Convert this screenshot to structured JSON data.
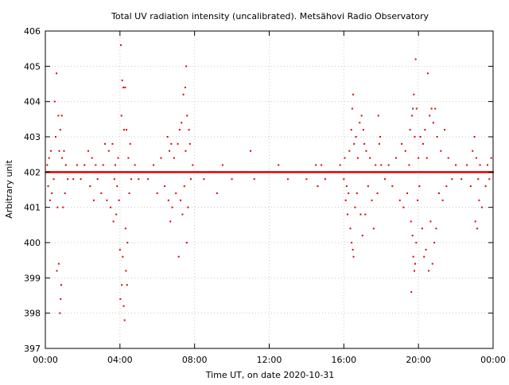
{
  "chart_data": {
    "type": "scatter",
    "title": "Total UV radiation intensity (uncalibrated). Metsähovi Radio Observatory",
    "xlabel": "Time UT, on date 2020-10-31",
    "ylabel": "Arbitrary unit",
    "xlim": [
      0,
      24
    ],
    "ylim": [
      397,
      406
    ],
    "x_ticks": [
      0,
      4,
      8,
      12,
      16,
      20,
      24
    ],
    "x_tick_labels": [
      "00:00",
      "04:00",
      "08:00",
      "12:00",
      "16:00",
      "20:00",
      "00:00"
    ],
    "y_ticks": [
      397,
      398,
      399,
      400,
      401,
      402,
      403,
      404,
      405,
      406
    ],
    "y_tick_labels": [
      "397",
      "398",
      "399",
      "400",
      "401",
      "402",
      "403",
      "404",
      "405",
      "406"
    ],
    "grid": true,
    "legend": "none",
    "point_color": "#e00000",
    "baseline_segments": [
      [
        0.0,
        24.0,
        402.0
      ]
    ],
    "series": [
      {
        "values": [
          [
            0.1,
            402.2
          ],
          [
            0.15,
            401.6
          ],
          [
            0.2,
            402.4
          ],
          [
            0.25,
            401.2
          ],
          [
            0.3,
            402.6
          ],
          [
            0.35,
            401.4
          ],
          [
            0.4,
            402.0
          ],
          [
            0.45,
            401.8
          ],
          [
            0.5,
            404.0
          ],
          [
            0.55,
            403.0
          ],
          [
            0.6,
            404.8
          ],
          [
            0.62,
            399.2
          ],
          [
            0.65,
            401.0
          ],
          [
            0.7,
            403.6
          ],
          [
            0.72,
            399.4
          ],
          [
            0.75,
            402.6
          ],
          [
            0.78,
            398.0
          ],
          [
            0.8,
            403.2
          ],
          [
            0.82,
            398.4
          ],
          [
            0.85,
            398.8
          ],
          [
            0.88,
            403.6
          ],
          [
            0.9,
            402.4
          ],
          [
            0.95,
            401.0
          ],
          [
            1.0,
            402.6
          ],
          [
            1.05,
            401.4
          ],
          [
            1.1,
            402.2
          ],
          [
            1.2,
            401.8
          ],
          [
            1.3,
            402.0
          ],
          [
            1.5,
            401.8
          ],
          [
            1.7,
            402.2
          ],
          [
            1.9,
            401.8
          ],
          [
            2.1,
            402.2
          ],
          [
            2.3,
            402.6
          ],
          [
            2.4,
            401.6
          ],
          [
            2.5,
            402.4
          ],
          [
            2.6,
            401.2
          ],
          [
            2.7,
            402.2
          ],
          [
            2.8,
            401.8
          ],
          [
            2.9,
            402.0
          ],
          [
            3.0,
            401.4
          ],
          [
            3.1,
            402.2
          ],
          [
            3.2,
            402.8
          ],
          [
            3.3,
            401.2
          ],
          [
            3.4,
            402.6
          ],
          [
            3.5,
            401.0
          ],
          [
            3.6,
            402.8
          ],
          [
            3.65,
            400.6
          ],
          [
            3.7,
            401.8
          ],
          [
            3.75,
            402.2
          ],
          [
            3.8,
            400.8
          ],
          [
            3.85,
            401.6
          ],
          [
            3.9,
            402.4
          ],
          [
            3.95,
            401.2
          ],
          [
            4.0,
            399.8
          ],
          [
            4.02,
            398.4
          ],
          [
            4.05,
            405.6
          ],
          [
            4.08,
            403.6
          ],
          [
            4.1,
            398.8
          ],
          [
            4.12,
            404.6
          ],
          [
            4.15,
            399.6
          ],
          [
            4.18,
            404.4
          ],
          [
            4.2,
            398.2
          ],
          [
            4.22,
            403.2
          ],
          [
            4.25,
            397.8
          ],
          [
            4.28,
            404.4
          ],
          [
            4.3,
            400.4
          ],
          [
            4.32,
            399.2
          ],
          [
            4.35,
            403.2
          ],
          [
            4.38,
            398.8
          ],
          [
            4.4,
            400.0
          ],
          [
            4.45,
            402.4
          ],
          [
            4.5,
            401.4
          ],
          [
            4.55,
            402.8
          ],
          [
            4.6,
            401.8
          ],
          [
            4.8,
            402.2
          ],
          [
            5.0,
            401.8
          ],
          [
            5.2,
            402.0
          ],
          [
            5.5,
            401.8
          ],
          [
            5.8,
            402.2
          ],
          [
            6.0,
            401.4
          ],
          [
            6.2,
            402.4
          ],
          [
            6.4,
            401.6
          ],
          [
            6.55,
            403.0
          ],
          [
            6.6,
            401.2
          ],
          [
            6.65,
            402.6
          ],
          [
            6.7,
            400.6
          ],
          [
            6.75,
            402.8
          ],
          [
            6.8,
            401.0
          ],
          [
            6.9,
            402.4
          ],
          [
            7.0,
            401.4
          ],
          [
            7.1,
            402.8
          ],
          [
            7.15,
            399.6
          ],
          [
            7.2,
            403.2
          ],
          [
            7.25,
            401.2
          ],
          [
            7.3,
            403.4
          ],
          [
            7.35,
            400.8
          ],
          [
            7.4,
            404.2
          ],
          [
            7.45,
            401.6
          ],
          [
            7.5,
            404.4
          ],
          [
            7.52,
            402.6
          ],
          [
            7.55,
            405.0
          ],
          [
            7.58,
            400.0
          ],
          [
            7.6,
            403.6
          ],
          [
            7.65,
            401.0
          ],
          [
            7.7,
            403.2
          ],
          [
            7.75,
            402.8
          ],
          [
            7.8,
            401.8
          ],
          [
            7.9,
            402.2
          ],
          [
            8.0,
            402.0
          ],
          [
            8.5,
            401.8
          ],
          [
            9.0,
            402.0
          ],
          [
            9.2,
            401.4
          ],
          [
            9.5,
            402.2
          ],
          [
            10.0,
            401.8
          ],
          [
            10.5,
            402.0
          ],
          [
            11.0,
            402.6
          ],
          [
            11.2,
            401.8
          ],
          [
            12.0,
            402.0
          ],
          [
            12.5,
            402.2
          ],
          [
            13.0,
            401.8
          ],
          [
            13.5,
            402.0
          ],
          [
            14.0,
            401.8
          ],
          [
            14.5,
            402.2
          ],
          [
            14.6,
            401.6
          ],
          [
            14.8,
            402.2
          ],
          [
            15.0,
            401.8
          ],
          [
            15.5,
            402.0
          ],
          [
            15.8,
            402.2
          ],
          [
            16.0,
            401.8
          ],
          [
            16.05,
            402.4
          ],
          [
            16.1,
            401.2
          ],
          [
            16.15,
            401.6
          ],
          [
            16.2,
            400.8
          ],
          [
            16.25,
            401.4
          ],
          [
            16.3,
            402.6
          ],
          [
            16.35,
            400.4
          ],
          [
            16.4,
            403.2
          ],
          [
            16.42,
            400.0
          ],
          [
            16.45,
            403.8
          ],
          [
            16.48,
            399.8
          ],
          [
            16.5,
            404.2
          ],
          [
            16.52,
            399.6
          ],
          [
            16.55,
            402.8
          ],
          [
            16.6,
            401.0
          ],
          [
            16.65,
            403.0
          ],
          [
            16.7,
            401.4
          ],
          [
            16.75,
            402.4
          ],
          [
            16.8,
            402.0
          ],
          [
            16.85,
            403.4
          ],
          [
            16.9,
            400.8
          ],
          [
            16.95,
            403.6
          ],
          [
            17.0,
            400.2
          ],
          [
            17.05,
            403.2
          ],
          [
            17.1,
            402.8
          ],
          [
            17.15,
            400.8
          ],
          [
            17.2,
            402.6
          ],
          [
            17.3,
            401.6
          ],
          [
            17.4,
            402.4
          ],
          [
            17.5,
            401.2
          ],
          [
            17.6,
            400.4
          ],
          [
            17.7,
            402.2
          ],
          [
            17.8,
            401.4
          ],
          [
            17.85,
            403.6
          ],
          [
            17.9,
            402.8
          ],
          [
            17.95,
            403.0
          ],
          [
            18.0,
            402.2
          ],
          [
            18.2,
            401.8
          ],
          [
            18.4,
            402.2
          ],
          [
            18.6,
            401.6
          ],
          [
            18.8,
            402.4
          ],
          [
            19.0,
            401.2
          ],
          [
            19.1,
            402.8
          ],
          [
            19.2,
            401.0
          ],
          [
            19.3,
            402.6
          ],
          [
            19.4,
            401.4
          ],
          [
            19.5,
            402.2
          ],
          [
            19.55,
            403.2
          ],
          [
            19.6,
            400.6
          ],
          [
            19.62,
            398.6
          ],
          [
            19.65,
            403.6
          ],
          [
            19.68,
            400.2
          ],
          [
            19.7,
            403.8
          ],
          [
            19.72,
            399.6
          ],
          [
            19.75,
            404.2
          ],
          [
            19.78,
            399.2
          ],
          [
            19.8,
            403.0
          ],
          [
            19.82,
            399.4
          ],
          [
            19.85,
            405.2
          ],
          [
            19.88,
            400.0
          ],
          [
            19.9,
            403.8
          ],
          [
            19.95,
            401.2
          ],
          [
            20.0,
            402.4
          ],
          [
            20.05,
            401.6
          ],
          [
            20.1,
            403.0
          ],
          [
            20.2,
            400.4
          ],
          [
            20.25,
            402.8
          ],
          [
            20.3,
            399.6
          ],
          [
            20.35,
            403.2
          ],
          [
            20.4,
            399.8
          ],
          [
            20.45,
            402.4
          ],
          [
            20.5,
            404.8
          ],
          [
            20.55,
            399.2
          ],
          [
            20.6,
            403.6
          ],
          [
            20.65,
            400.6
          ],
          [
            20.7,
            403.8
          ],
          [
            20.75,
            399.4
          ],
          [
            20.8,
            403.4
          ],
          [
            20.85,
            400.0
          ],
          [
            20.9,
            403.8
          ],
          [
            20.95,
            400.4
          ],
          [
            21.0,
            403.0
          ],
          [
            21.1,
            401.4
          ],
          [
            21.2,
            402.6
          ],
          [
            21.3,
            401.2
          ],
          [
            21.4,
            403.2
          ],
          [
            21.5,
            401.6
          ],
          [
            21.6,
            402.4
          ],
          [
            21.8,
            401.8
          ],
          [
            22.0,
            402.2
          ],
          [
            22.3,
            401.8
          ],
          [
            22.6,
            402.2
          ],
          [
            22.8,
            401.6
          ],
          [
            22.9,
            402.6
          ],
          [
            23.0,
            403.0
          ],
          [
            23.05,
            400.6
          ],
          [
            23.1,
            402.4
          ],
          [
            23.15,
            400.4
          ],
          [
            23.2,
            401.8
          ],
          [
            23.25,
            401.2
          ],
          [
            23.3,
            402.2
          ],
          [
            23.4,
            401.0
          ],
          [
            23.5,
            402.0
          ],
          [
            23.6,
            401.6
          ],
          [
            23.7,
            402.2
          ],
          [
            23.8,
            401.8
          ],
          [
            23.9,
            402.4
          ],
          [
            24.0,
            402.0
          ]
        ]
      }
    ]
  }
}
